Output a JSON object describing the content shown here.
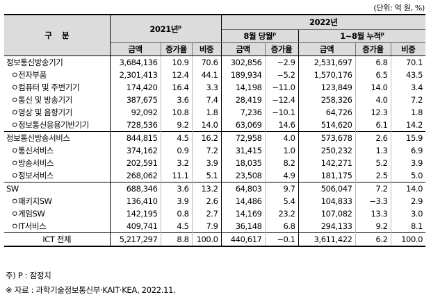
{
  "unit_note": "(단위: 억 원, %)",
  "header": {
    "category": "구    분",
    "year2021": "2021년",
    "year2021_sup": "p",
    "year2022": "2022년",
    "month8": "8월 당월",
    "month8_sup": "p",
    "cumulative": "1~8월 누적",
    "cumulative_sup": "p",
    "col_amount": "금액",
    "col_growth": "증가율",
    "col_share": "비중"
  },
  "rows": [
    {
      "label": "정보통신방송기기",
      "sub": false,
      "group_start": true,
      "a2021": "3,684,136",
      "g2021": "10.9",
      "s2021": "70.6",
      "aAug": "302,856",
      "gAug": "−2.9",
      "aCum": "2,531,697",
      "gCum": "6.8",
      "sCum": "70.1"
    },
    {
      "label": "ㅇ전자부품",
      "sub": true,
      "group_start": false,
      "a2021": "2,301,413",
      "g2021": "12.4",
      "s2021": "44.1",
      "aAug": "189,934",
      "gAug": "−5.2",
      "aCum": "1,570,176",
      "gCum": "6.5",
      "sCum": "43.5"
    },
    {
      "label": "ㅇ컴퓨터 및 주변기기",
      "sub": true,
      "group_start": false,
      "a2021": "174,420",
      "g2021": "16.4",
      "s2021": "3.3",
      "aAug": "14,198",
      "gAug": "−11.0",
      "aCum": "123,849",
      "gCum": "14.0",
      "sCum": "3.4"
    },
    {
      "label": "ㅇ통신 및 방송기기",
      "sub": true,
      "group_start": false,
      "a2021": "387,675",
      "g2021": "3.6",
      "s2021": "7.4",
      "aAug": "28,419",
      "gAug": "−12.4",
      "aCum": "258,326",
      "gCum": "4.0",
      "sCum": "7.2"
    },
    {
      "label": "ㅇ영상 및 음향기기",
      "sub": true,
      "group_start": false,
      "a2021": "92,092",
      "g2021": "10.8",
      "s2021": "1.8",
      "aAug": "7,236",
      "gAug": "−10.1",
      "aCum": "64,726",
      "gCum": "12.3",
      "sCum": "1.8"
    },
    {
      "label": "ㅇ정보통신응용기반기기",
      "sub": true,
      "group_start": false,
      "a2021": "728,536",
      "g2021": "9.2",
      "s2021": "14.0",
      "aAug": "63,069",
      "gAug": "14.6",
      "aCum": "514,620",
      "gCum": "6.1",
      "sCum": "14.2"
    },
    {
      "label": "정보통신방송서비스",
      "sub": false,
      "group_start": true,
      "a2021": "844,815",
      "g2021": "4.5",
      "s2021": "16.2",
      "aAug": "72,958",
      "gAug": "4.0",
      "aCum": "573,678",
      "gCum": "2.6",
      "sCum": "15.9"
    },
    {
      "label": "ㅇ통신서비스",
      "sub": true,
      "group_start": false,
      "a2021": "374,162",
      "g2021": "0.9",
      "s2021": "7.2",
      "aAug": "31,415",
      "gAug": "1.0",
      "aCum": "250,232",
      "gCum": "1.3",
      "sCum": "6.9"
    },
    {
      "label": "ㅇ방송서비스",
      "sub": true,
      "group_start": false,
      "a2021": "202,591",
      "g2021": "3.2",
      "s2021": "3.9",
      "aAug": "18,035",
      "gAug": "8.2",
      "aCum": "142,271",
      "gCum": "5.2",
      "sCum": "3.9"
    },
    {
      "label": "ㅇ정보서비스",
      "sub": true,
      "group_start": false,
      "a2021": "268,062",
      "g2021": "11.1",
      "s2021": "5.1",
      "aAug": "23,508",
      "gAug": "4.9",
      "aCum": "181,175",
      "gCum": "2.5",
      "sCum": "5.0"
    },
    {
      "label": "SW",
      "sub": false,
      "group_start": true,
      "a2021": "688,346",
      "g2021": "3.6",
      "s2021": "13.2",
      "aAug": "64,803",
      "gAug": "9.7",
      "aCum": "506,047",
      "gCum": "7.2",
      "sCum": "14.0"
    },
    {
      "label": "ㅇ패키지SW",
      "sub": true,
      "group_start": false,
      "a2021": "136,410",
      "g2021": "3.9",
      "s2021": "2.6",
      "aAug": "14,486",
      "gAug": "5.4",
      "aCum": "104,833",
      "gCum": "−3.3",
      "sCum": "2.9"
    },
    {
      "label": "ㅇ게임SW",
      "sub": true,
      "group_start": false,
      "a2021": "142,195",
      "g2021": "0.8",
      "s2021": "2.7",
      "aAug": "14,169",
      "gAug": "23.2",
      "aCum": "107,082",
      "gCum": "13.3",
      "sCum": "3.0"
    },
    {
      "label": "ㅇIT서비스",
      "sub": true,
      "group_start": false,
      "a2021": "409,741",
      "g2021": "4.5",
      "s2021": "7.9",
      "aAug": "36,148",
      "gAug": "6.8",
      "aCum": "294,133",
      "gCum": "9.2",
      "sCum": "8.1"
    }
  ],
  "total": {
    "label": "ICT 전체",
    "a2021": "5,217,297",
    "g2021": "8.8",
    "s2021": "100.0",
    "aAug": "440,617",
    "gAug": "−0.1",
    "aCum": "3,611,422",
    "gCum": "6.2",
    "sCum": "100.0"
  },
  "footnote": "주) P : 잠정치",
  "source": "※ 자료 : 과학기술정보통신부·KAIT·KEA, 2022.11."
}
